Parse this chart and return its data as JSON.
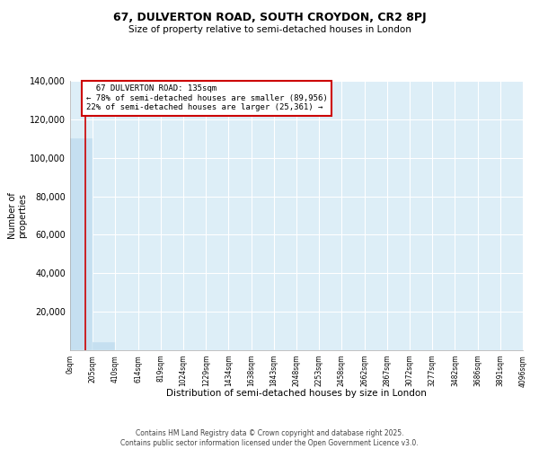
{
  "title": "67, DULVERTON ROAD, SOUTH CROYDON, CR2 8PJ",
  "subtitle": "Size of property relative to semi-detached houses in London",
  "xlabel": "Distribution of semi-detached houses by size in London",
  "ylabel": "Number of\nproperties",
  "property_size": 135,
  "property_label": "67 DULVERTON ROAD: 135sqm",
  "annotation_line1": "← 78% of semi-detached houses are smaller (89,956)",
  "annotation_line2": "22% of semi-detached houses are larger (25,361) →",
  "footer_line1": "Contains HM Land Registry data © Crown copyright and database right 2025.",
  "footer_line2": "Contains public sector information licensed under the Open Government Licence v3.0.",
  "bar_color": "#c5dff0",
  "marker_color": "#cc0000",
  "ylim": [
    0,
    140000
  ],
  "yticks": [
    0,
    20000,
    40000,
    60000,
    80000,
    100000,
    120000,
    140000
  ],
  "bin_edges": [
    0,
    205,
    410,
    614,
    819,
    1024,
    1229,
    1434,
    1638,
    1843,
    2048,
    2253,
    2458,
    2662,
    2867,
    3072,
    3277,
    3482,
    3686,
    3891,
    4096
  ],
  "bin_labels": [
    "0sqm",
    "205sqm",
    "410sqm",
    "614sqm",
    "819sqm",
    "1024sqm",
    "1229sqm",
    "1434sqm",
    "1638sqm",
    "1843sqm",
    "2048sqm",
    "2253sqm",
    "2458sqm",
    "2662sqm",
    "2867sqm",
    "3072sqm",
    "3277sqm",
    "3482sqm",
    "3686sqm",
    "3891sqm",
    "4096sqm"
  ],
  "bar_heights": [
    110000,
    4000,
    0,
    0,
    0,
    0,
    0,
    0,
    0,
    0,
    0,
    0,
    0,
    0,
    0,
    0,
    0,
    0,
    0,
    0
  ],
  "bg_color": "#ddeef7"
}
